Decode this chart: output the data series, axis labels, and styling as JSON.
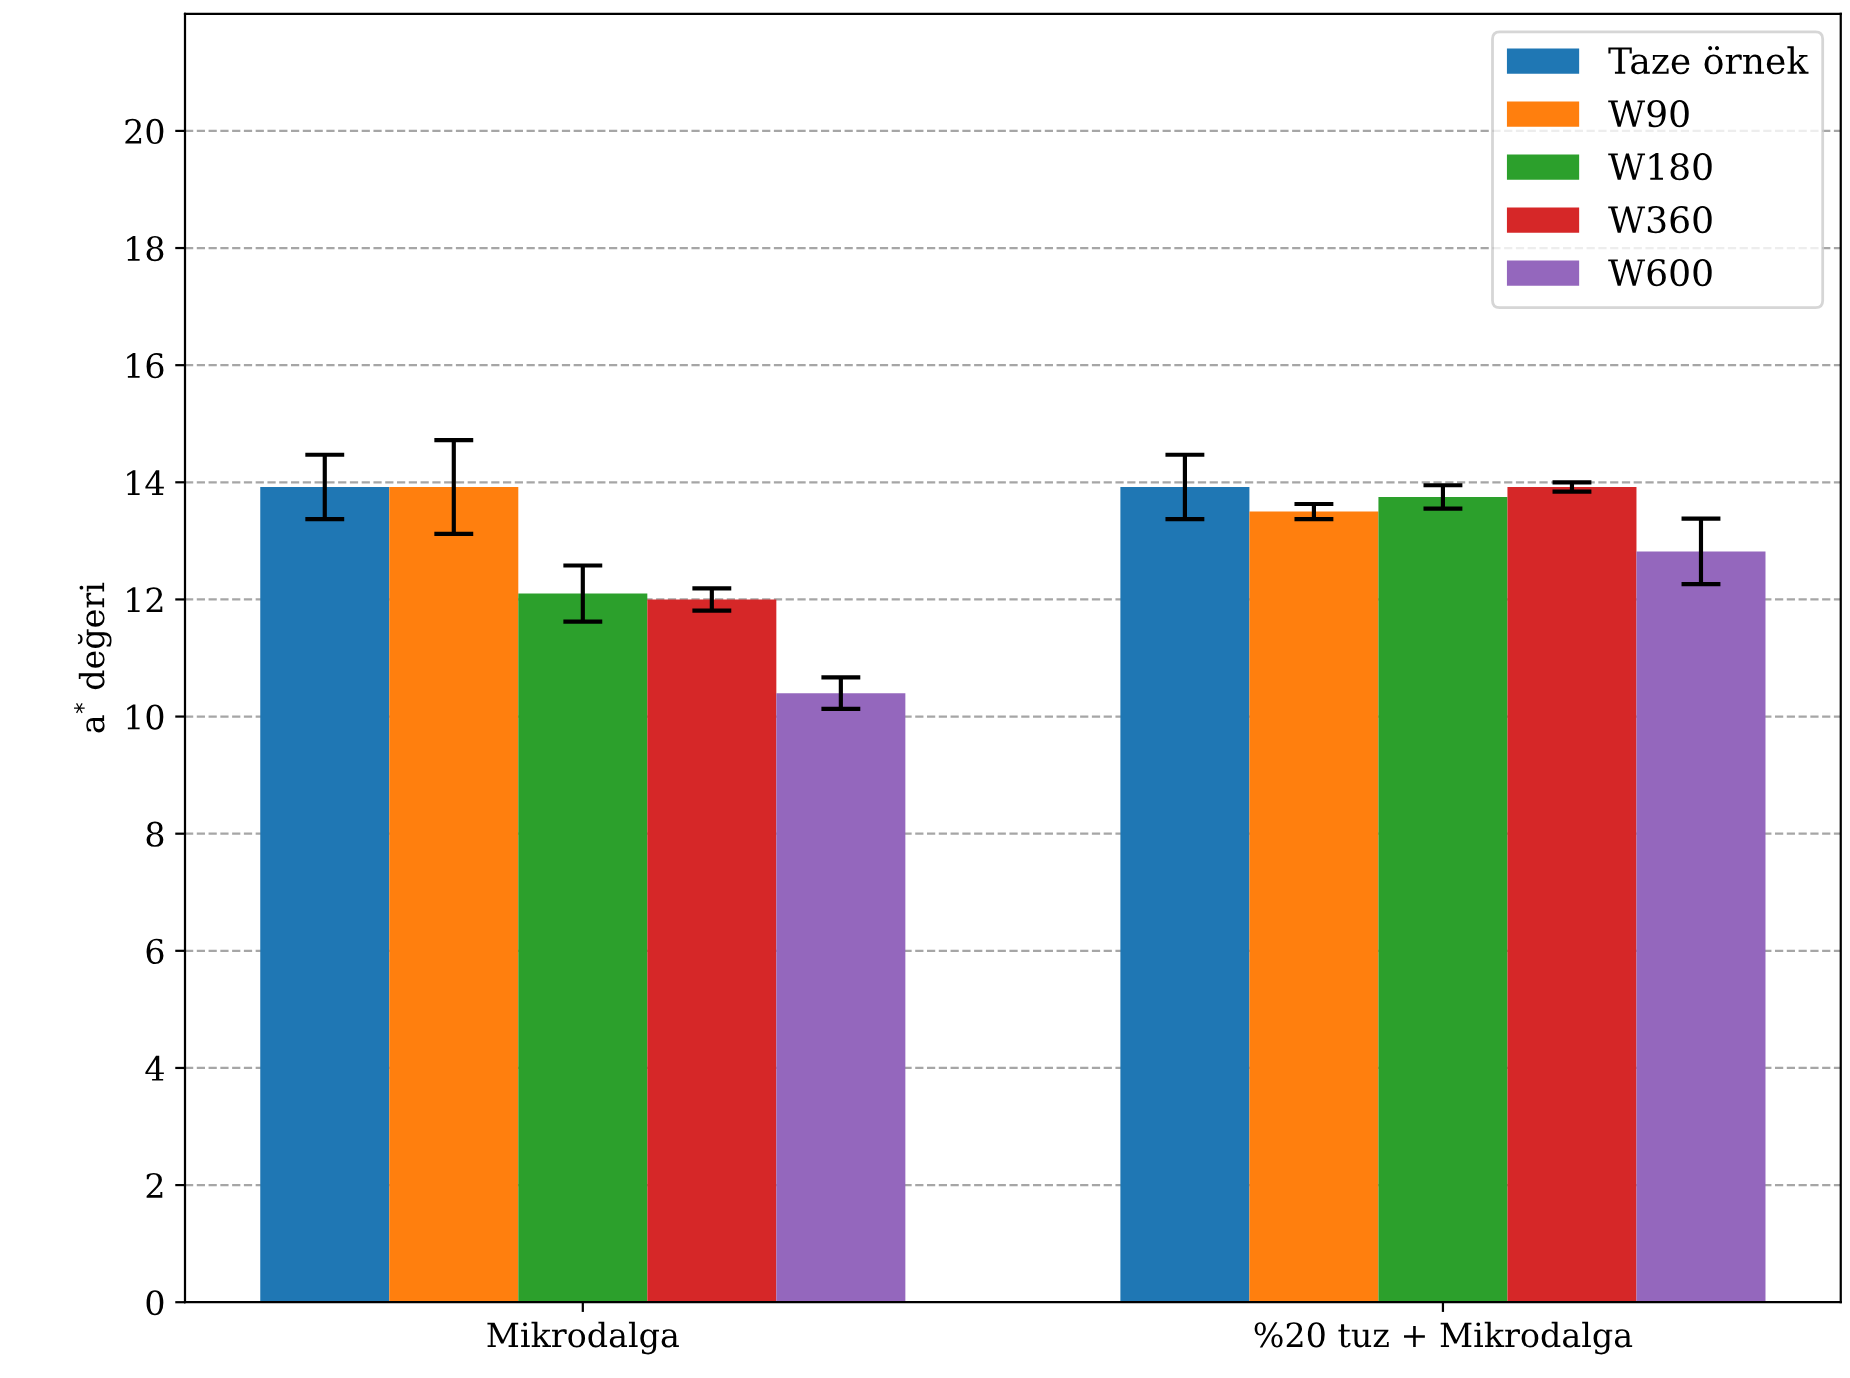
{
  "chart_data": {
    "type": "bar",
    "ylabel": "a$^{*}$ değeri",
    "categories": [
      "Mikrodalga",
      "%20 tuz + Mikrodalga"
    ],
    "series": [
      {
        "name": "Taze örnek",
        "color": "#1f77b4",
        "values": [
          13.92,
          13.92
        ],
        "errors": [
          0.55,
          0.55
        ]
      },
      {
        "name": "W90",
        "color": "#ff7f0e",
        "values": [
          13.92,
          13.5
        ],
        "errors": [
          0.8,
          0.13
        ]
      },
      {
        "name": "W180",
        "color": "#2ca02c",
        "values": [
          12.1,
          13.75
        ],
        "errors": [
          0.48,
          0.2
        ]
      },
      {
        "name": "W360",
        "color": "#d62728",
        "values": [
          12.0,
          13.92
        ],
        "errors": [
          0.19,
          0.08
        ]
      },
      {
        "name": "W600",
        "color": "#9467bd",
        "values": [
          10.4,
          12.82
        ],
        "errors": [
          0.27,
          0.56
        ]
      }
    ],
    "ylim": [
      0,
      22
    ],
    "yticks": [
      0,
      2,
      4,
      6,
      8,
      10,
      12,
      14,
      16,
      18,
      20
    ],
    "grid": "y",
    "legend": "top right"
  }
}
